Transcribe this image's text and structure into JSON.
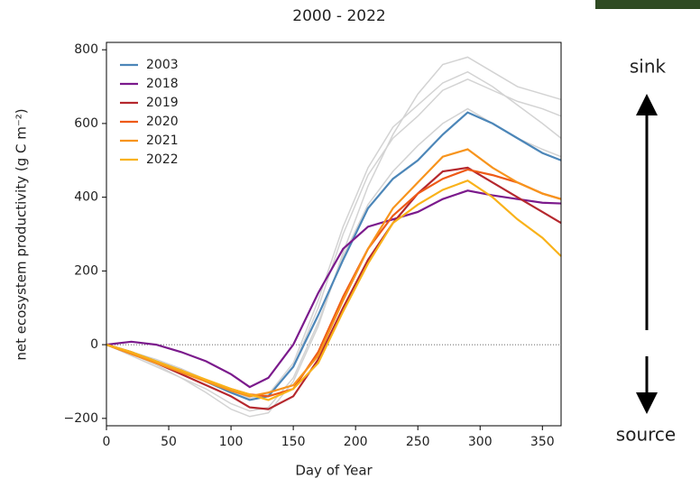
{
  "chart_data": {
    "type": "line",
    "title": "2000 - 2022",
    "xlabel": "Day of Year",
    "ylabel": "net ecosystem productivity (g C m⁻²)",
    "x": [
      0,
      20,
      40,
      60,
      80,
      100,
      115,
      130,
      150,
      170,
      190,
      210,
      230,
      250,
      270,
      290,
      310,
      330,
      350,
      365
    ],
    "series": [
      {
        "name": "2003",
        "color": "#4c86b8",
        "values": [
          0,
          -20,
          -45,
          -70,
          -100,
          -130,
          -150,
          -140,
          -60,
          80,
          230,
          370,
          450,
          500,
          570,
          630,
          600,
          560,
          520,
          500
        ]
      },
      {
        "name": "2018",
        "color": "#7b1a8c",
        "values": [
          0,
          8,
          0,
          -20,
          -45,
          -80,
          -115,
          -90,
          0,
          140,
          260,
          320,
          340,
          360,
          395,
          418,
          405,
          395,
          385,
          383
        ]
      },
      {
        "name": "2019",
        "color": "#b5282e",
        "values": [
          0,
          -25,
          -50,
          -80,
          -110,
          -140,
          -170,
          -175,
          -140,
          -40,
          100,
          230,
          330,
          410,
          470,
          480,
          440,
          400,
          360,
          330
        ]
      },
      {
        "name": "2020",
        "color": "#ee5a16",
        "values": [
          0,
          -20,
          -50,
          -70,
          -100,
          -120,
          -135,
          -140,
          -120,
          -20,
          130,
          260,
          350,
          410,
          450,
          475,
          460,
          440,
          410,
          395
        ]
      },
      {
        "name": "2021",
        "color": "#f7941d",
        "values": [
          0,
          -25,
          -50,
          -75,
          -100,
          -125,
          -140,
          -130,
          -110,
          -30,
          120,
          260,
          370,
          440,
          510,
          530,
          480,
          440,
          410,
          395
        ]
      },
      {
        "name": "2022",
        "color": "#f9b21a",
        "values": [
          0,
          -20,
          -45,
          -70,
          -95,
          -120,
          -135,
          -150,
          -120,
          -50,
          90,
          220,
          330,
          380,
          420,
          445,
          400,
          340,
          290,
          240
        ]
      }
    ],
    "background_series": [
      {
        "color": "#d3d3d3",
        "values": [
          0,
          -25,
          -55,
          -90,
          -130,
          -175,
          -195,
          -185,
          -100,
          50,
          250,
          430,
          570,
          680,
          760,
          780,
          740,
          700,
          680,
          665
        ]
      },
      {
        "color": "#d3d3d3",
        "values": [
          0,
          -20,
          -45,
          -70,
          -100,
          -130,
          -150,
          -140,
          -60,
          100,
          300,
          460,
          560,
          620,
          690,
          720,
          690,
          660,
          640,
          620
        ]
      },
      {
        "color": "#d3d3d3",
        "values": [
          0,
          -20,
          -40,
          -65,
          -95,
          -125,
          -145,
          -135,
          -50,
          120,
          320,
          480,
          590,
          650,
          710,
          740,
          700,
          650,
          600,
          560
        ]
      },
      {
        "color": "#d3d3d3",
        "values": [
          0,
          -30,
          -60,
          -90,
          -120,
          -160,
          -180,
          -170,
          -90,
          60,
          240,
          380,
          470,
          540,
          600,
          640,
          600,
          560,
          530,
          510
        ]
      }
    ],
    "reference_line": 0,
    "xlim": [
      0,
      365
    ],
    "ylim": [
      -220,
      820
    ],
    "xticks": [
      0,
      50,
      100,
      150,
      200,
      250,
      300,
      350
    ],
    "yticks": [
      {
        "value": -200,
        "label": "−200"
      },
      0,
      200,
      400,
      600,
      800
    ],
    "legend": "upper left",
    "annotations": {
      "top": "sink",
      "bottom": "source"
    }
  }
}
